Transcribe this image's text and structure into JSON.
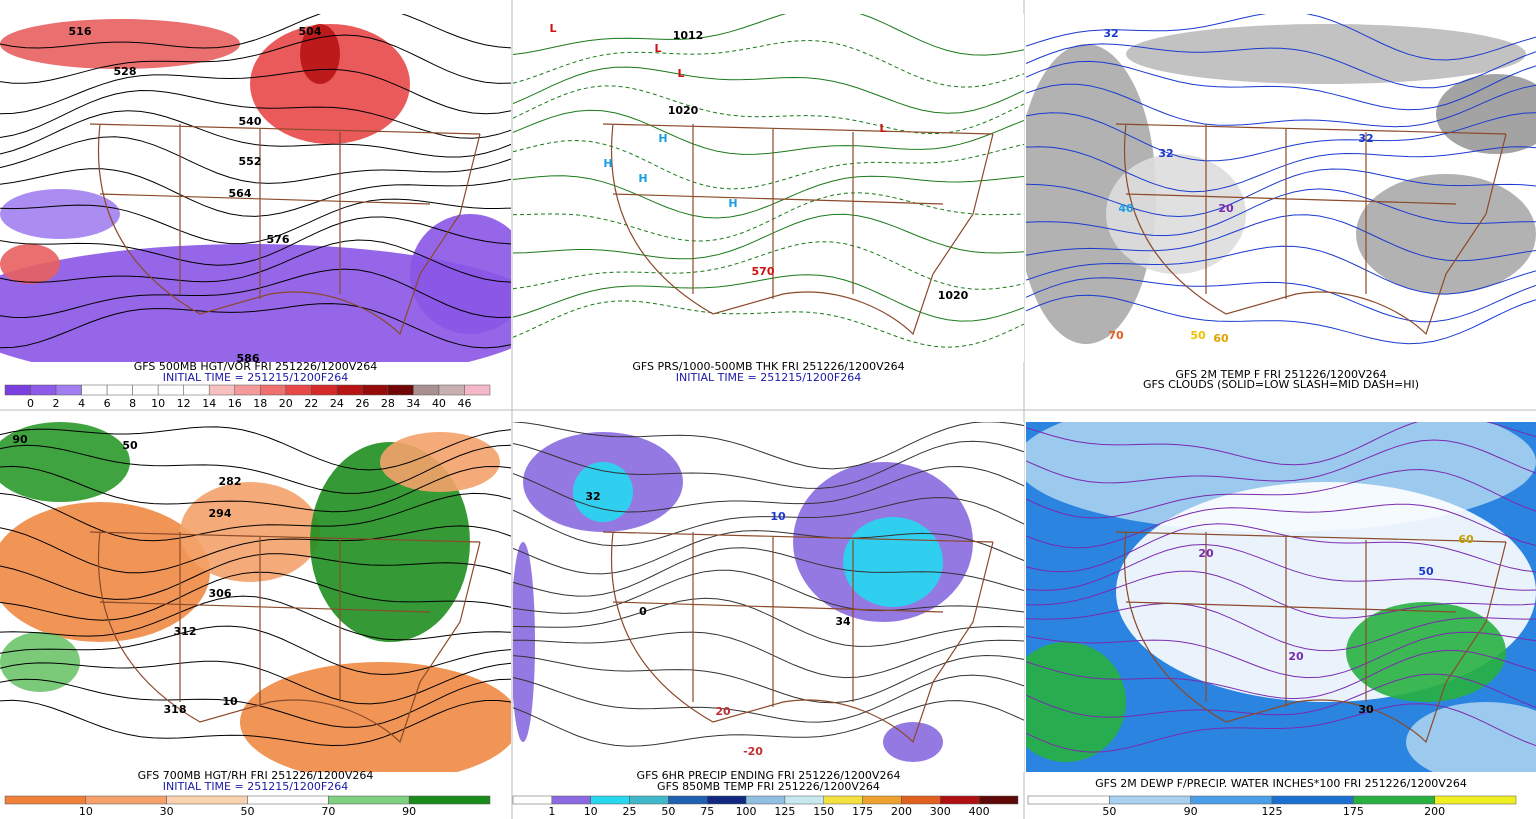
{
  "panels": [
    {
      "captions": [
        "GFS 500MB HGT/VOR FRI 251226/1200V264",
        "INITIAL TIME = 251215/1200F264"
      ],
      "map_labels": [
        "516",
        "528",
        "540",
        "552",
        "564",
        "576",
        "504",
        "586"
      ],
      "colorbar": {
        "labels": [
          0,
          2,
          4,
          6,
          8,
          10,
          12,
          14,
          16,
          18,
          20,
          22,
          24,
          26,
          28,
          34,
          40,
          46
        ],
        "colors": [
          "#7b3fe0",
          "#8e5ae8",
          "#a27ff0",
          "#ffffff",
          "#ffffff",
          "#ffffff",
          "#ffffff",
          "#ffffff",
          "#f7c0c0",
          "#f49a9a",
          "#ef7070",
          "#e84848",
          "#d42a2a",
          "#b81414",
          "#960a0a",
          "#700606",
          "#a89090",
          "#c8b0b0",
          "#f4b8c8"
        ]
      }
    },
    {
      "captions": [
        "GFS PRS/1000-500MB THK FRI 251226/1200V264",
        "INITIAL TIME = 251215/1200F264"
      ],
      "map_labels": [
        "L",
        "L",
        "L",
        "L",
        "H",
        "H",
        "H",
        "H",
        "1020",
        "1012",
        "570",
        "1020"
      ]
    },
    {
      "captions": [
        "GFS 2M TEMP F FRI 251226/1200V264",
        "GFS CLOUDS (SOLID=LOW SLASH=MID DASH=HI)"
      ],
      "map_labels": [
        "32",
        "32",
        "20",
        "40",
        "60",
        "70",
        "50",
        "32"
      ]
    },
    {
      "captions": [
        "GFS 700MB HGT/RH FRI 251226/1200V264",
        "INITIAL TIME = 251215/1200F264"
      ],
      "map_labels": [
        "282",
        "294",
        "306",
        "312",
        "318",
        "50",
        "10",
        "90"
      ],
      "colorbar": {
        "labels": [
          10,
          30,
          50,
          70,
          90
        ],
        "colors": [
          "#ef7f3a",
          "#f4a26a",
          "#fbd2b0",
          "#ffffff",
          "#7fd07f",
          "#1a8a1a"
        ]
      }
    },
    {
      "captions": [
        "GFS 6HR PRECIP ENDING FRI 251226/1200V264",
        "GFS 850MB TEMP FRI 251226/1200V264"
      ],
      "map_labels": [
        "32",
        "10",
        "0",
        "-20",
        "20",
        "34"
      ],
      "colorbar": {
        "labels": [
          1,
          10,
          25,
          50,
          75,
          100,
          125,
          150,
          175,
          200,
          300,
          400
        ],
        "colors": [
          "#ffffff",
          "#8a6ae0",
          "#26d8f0",
          "#40b8c8",
          "#2060b0",
          "#102880",
          "#90c0e0",
          "#c8e8f0",
          "#f4e040",
          "#f0a030",
          "#e06020",
          "#b01010",
          "#600808"
        ]
      }
    },
    {
      "captions": [
        "GFS 2M DEWP F/PRECIP. WATER INCHES*100 FRI 251226/1200V264"
      ],
      "map_labels": [
        "20",
        "50",
        "60",
        "30",
        "20"
      ],
      "colorbar": {
        "labels": [
          50,
          90,
          125,
          175,
          200
        ],
        "colors": [
          "#ffffff",
          "#a8d0f0",
          "#4aa0e8",
          "#1a70d0",
          "#28b040",
          "#f0f020"
        ]
      }
    }
  ]
}
